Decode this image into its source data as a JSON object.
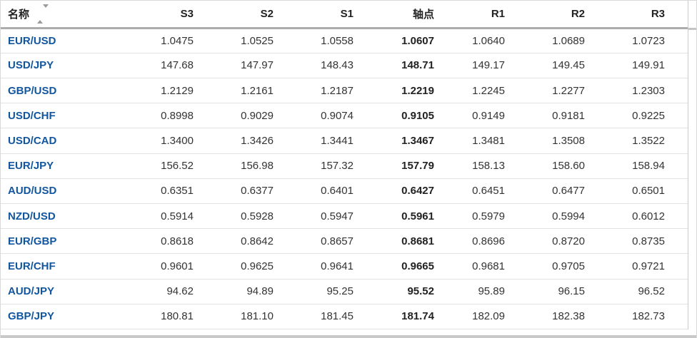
{
  "colors": {
    "link_blue": "#1256a0",
    "header_text": "#222222",
    "number_text": "#333333",
    "header_border": "#acacac",
    "row_divider": "#e2e2e2",
    "outer_border": "#d9d9d9",
    "sort_icon_grey": "#9b9b9b",
    "scrollbar_grey": "#c9c9c9"
  },
  "icons": {
    "name_sort": "sort-arrows-icon"
  },
  "table": {
    "columns": [
      {
        "key": "name",
        "label": "名称"
      },
      {
        "key": "s3",
        "label": "S3"
      },
      {
        "key": "s2",
        "label": "S2"
      },
      {
        "key": "s1",
        "label": "S1"
      },
      {
        "key": "pivot",
        "label": "轴点"
      },
      {
        "key": "r1",
        "label": "R1"
      },
      {
        "key": "r2",
        "label": "R2"
      },
      {
        "key": "r3",
        "label": "R3"
      }
    ],
    "value_keys": [
      "s3",
      "s2",
      "s1",
      "pivot",
      "r1",
      "r2",
      "r3"
    ],
    "rows": [
      {
        "name": "EUR/USD",
        "s3": "1.0475",
        "s2": "1.0525",
        "s1": "1.0558",
        "pivot": "1.0607",
        "r1": "1.0640",
        "r2": "1.0689",
        "r3": "1.0723"
      },
      {
        "name": "USD/JPY",
        "s3": "147.68",
        "s2": "147.97",
        "s1": "148.43",
        "pivot": "148.71",
        "r1": "149.17",
        "r2": "149.45",
        "r3": "149.91"
      },
      {
        "name": "GBP/USD",
        "s3": "1.2129",
        "s2": "1.2161",
        "s1": "1.2187",
        "pivot": "1.2219",
        "r1": "1.2245",
        "r2": "1.2277",
        "r3": "1.2303"
      },
      {
        "name": "USD/CHF",
        "s3": "0.8998",
        "s2": "0.9029",
        "s1": "0.9074",
        "pivot": "0.9105",
        "r1": "0.9149",
        "r2": "0.9181",
        "r3": "0.9225"
      },
      {
        "name": "USD/CAD",
        "s3": "1.3400",
        "s2": "1.3426",
        "s1": "1.3441",
        "pivot": "1.3467",
        "r1": "1.3481",
        "r2": "1.3508",
        "r3": "1.3522"
      },
      {
        "name": "EUR/JPY",
        "s3": "156.52",
        "s2": "156.98",
        "s1": "157.32",
        "pivot": "157.79",
        "r1": "158.13",
        "r2": "158.60",
        "r3": "158.94"
      },
      {
        "name": "AUD/USD",
        "s3": "0.6351",
        "s2": "0.6377",
        "s1": "0.6401",
        "pivot": "0.6427",
        "r1": "0.6451",
        "r2": "0.6477",
        "r3": "0.6501"
      },
      {
        "name": "NZD/USD",
        "s3": "0.5914",
        "s2": "0.5928",
        "s1": "0.5947",
        "pivot": "0.5961",
        "r1": "0.5979",
        "r2": "0.5994",
        "r3": "0.6012"
      },
      {
        "name": "EUR/GBP",
        "s3": "0.8618",
        "s2": "0.8642",
        "s1": "0.8657",
        "pivot": "0.8681",
        "r1": "0.8696",
        "r2": "0.8720",
        "r3": "0.8735"
      },
      {
        "name": "EUR/CHF",
        "s3": "0.9601",
        "s2": "0.9625",
        "s1": "0.9641",
        "pivot": "0.9665",
        "r1": "0.9681",
        "r2": "0.9705",
        "r3": "0.9721"
      },
      {
        "name": "AUD/JPY",
        "s3": "94.62",
        "s2": "94.89",
        "s1": "95.25",
        "pivot": "95.52",
        "r1": "95.89",
        "r2": "96.15",
        "r3": "96.52"
      },
      {
        "name": "GBP/JPY",
        "s3": "180.81",
        "s2": "181.10",
        "s1": "181.45",
        "pivot": "181.74",
        "r1": "182.09",
        "r2": "182.38",
        "r3": "182.73"
      }
    ]
  }
}
